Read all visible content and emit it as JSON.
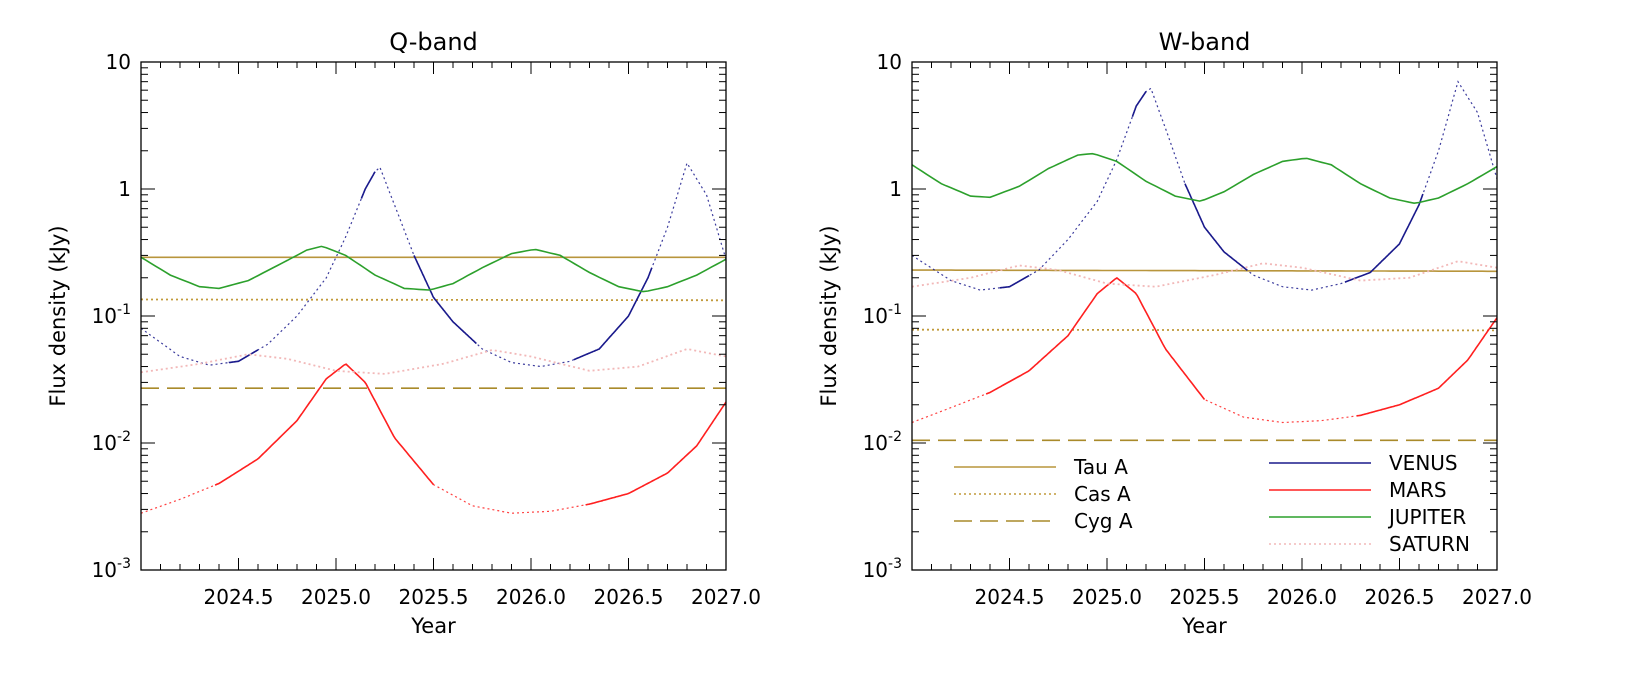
{
  "chart_data": [
    {
      "type": "line",
      "title": "Q-band",
      "xlabel": "Year",
      "ylabel": "Flux density (kJy)",
      "xlim": [
        2024.0,
        2027.0
      ],
      "ylim": [
        0.001,
        10
      ],
      "yscale": "log",
      "x_ticks": [
        "2024.5",
        "2025.0",
        "2025.5",
        "2026.0",
        "2026.5",
        "2027.0"
      ],
      "y_ticks": [
        {
          "base": "10",
          "exp": "-3"
        },
        {
          "base": "10",
          "exp": "-2"
        },
        {
          "base": "10",
          "exp": "-1"
        },
        {
          "base": "1",
          "exp": ""
        },
        {
          "base": "10",
          "exp": ""
        }
      ],
      "legend": "none",
      "series": [
        {
          "name": "Tau A",
          "color": "#b8953c",
          "dash": "solid",
          "x": [
            2024.0,
            2027.0
          ],
          "y": [
            0.29,
            0.29
          ]
        },
        {
          "name": "Cas A",
          "color": "#c19a3a",
          "dash": "dotted",
          "x": [
            2024.0,
            2027.0
          ],
          "y": [
            0.135,
            0.133
          ]
        },
        {
          "name": "Cyg A",
          "color": "#a98a2a",
          "dash": "dashed",
          "x": [
            2024.0,
            2027.0
          ],
          "y": [
            0.027,
            0.027
          ]
        },
        {
          "name": "VENUS",
          "color": "#1a1a8c",
          "x": [
            2024.0,
            2024.2,
            2024.35,
            2024.5,
            2024.65,
            2024.8,
            2024.95,
            2025.05,
            2025.15,
            2025.22,
            2025.3,
            2025.4,
            2025.5,
            2025.6,
            2025.75,
            2025.9,
            2026.05,
            2026.2,
            2026.35,
            2026.5,
            2026.6,
            2026.7,
            2026.8,
            2026.9,
            2027.0
          ],
          "y": [
            0.08,
            0.048,
            0.041,
            0.044,
            0.06,
            0.1,
            0.2,
            0.42,
            1.0,
            1.55,
            0.75,
            0.3,
            0.14,
            0.09,
            0.055,
            0.043,
            0.04,
            0.044,
            0.055,
            0.1,
            0.2,
            0.5,
            1.6,
            0.9,
            0.28
          ],
          "solid_x_ranges": [
            [
              2024.45,
              2024.6
            ],
            [
              2025.13,
              2025.2
            ],
            [
              2025.4,
              2025.72
            ],
            [
              2026.22,
              2026.62
            ]
          ]
        },
        {
          "name": "MARS",
          "color": "#ff2020",
          "x": [
            2024.0,
            2024.2,
            2024.4,
            2024.6,
            2024.8,
            2024.95,
            2025.05,
            2025.15,
            2025.3,
            2025.5,
            2025.7,
            2025.9,
            2026.1,
            2026.3,
            2026.5,
            2026.7,
            2026.85,
            2027.0
          ],
          "y": [
            0.0028,
            0.0036,
            0.0048,
            0.0075,
            0.015,
            0.032,
            0.042,
            0.03,
            0.011,
            0.0047,
            0.0032,
            0.0028,
            0.0029,
            0.0033,
            0.004,
            0.0058,
            0.0095,
            0.021
          ],
          "solid_x_ranges": [
            [
              2024.38,
              2025.5
            ],
            [
              2026.28,
              2027.0
            ]
          ]
        },
        {
          "name": "JUPITER",
          "color": "#2ca02c",
          "x": [
            2024.0,
            2024.15,
            2024.3,
            2024.4,
            2024.55,
            2024.7,
            2024.85,
            2024.93,
            2025.05,
            2025.2,
            2025.35,
            2025.48,
            2025.6,
            2025.75,
            2025.9,
            2026.02,
            2026.15,
            2026.3,
            2026.45,
            2026.58,
            2026.7,
            2026.85,
            2027.0
          ],
          "y": [
            0.29,
            0.21,
            0.17,
            0.165,
            0.19,
            0.25,
            0.33,
            0.355,
            0.3,
            0.21,
            0.165,
            0.16,
            0.18,
            0.24,
            0.31,
            0.335,
            0.3,
            0.22,
            0.17,
            0.155,
            0.17,
            0.21,
            0.28
          ]
        },
        {
          "name": "SATURN",
          "color": "#f2b8b8",
          "dash": "dotted",
          "x": [
            2024.0,
            2024.3,
            2024.55,
            2024.75,
            2025.0,
            2025.25,
            2025.55,
            2025.8,
            2026.0,
            2026.3,
            2026.55,
            2026.8,
            2027.0
          ],
          "y": [
            0.036,
            0.042,
            0.05,
            0.046,
            0.037,
            0.035,
            0.042,
            0.054,
            0.048,
            0.037,
            0.04,
            0.055,
            0.048
          ]
        }
      ]
    },
    {
      "type": "line",
      "title": "W-band",
      "xlabel": "Year",
      "ylabel": "Flux density (kJy)",
      "xlim": [
        2024.0,
        2027.0
      ],
      "ylim": [
        0.001,
        10
      ],
      "yscale": "log",
      "x_ticks": [
        "2024.5",
        "2025.0",
        "2025.5",
        "2026.0",
        "2026.5",
        "2027.0"
      ],
      "y_ticks": [
        {
          "base": "10",
          "exp": "-3"
        },
        {
          "base": "10",
          "exp": "-2"
        },
        {
          "base": "10",
          "exp": "-1"
        },
        {
          "base": "1",
          "exp": ""
        },
        {
          "base": "10",
          "exp": ""
        }
      ],
      "legend": "bottom",
      "series": [
        {
          "name": "Tau A",
          "color": "#b8953c",
          "dash": "solid",
          "x": [
            2024.0,
            2027.0
          ],
          "y": [
            0.23,
            0.225
          ]
        },
        {
          "name": "Cas A",
          "color": "#c19a3a",
          "dash": "dotted",
          "x": [
            2024.0,
            2027.0
          ],
          "y": [
            0.078,
            0.077
          ]
        },
        {
          "name": "Cyg A",
          "color": "#a98a2a",
          "dash": "dashed",
          "x": [
            2024.0,
            2027.0
          ],
          "y": [
            0.0105,
            0.0105
          ]
        },
        {
          "name": "VENUS",
          "color": "#1a1a8c",
          "x": [
            2024.0,
            2024.2,
            2024.35,
            2024.5,
            2024.65,
            2024.8,
            2024.95,
            2025.05,
            2025.15,
            2025.22,
            2025.3,
            2025.4,
            2025.5,
            2025.6,
            2025.75,
            2025.9,
            2026.05,
            2026.2,
            2026.35,
            2026.5,
            2026.6,
            2026.7,
            2026.8,
            2026.9,
            2027.0
          ],
          "y": [
            0.3,
            0.19,
            0.16,
            0.17,
            0.23,
            0.4,
            0.8,
            1.7,
            4.5,
            6.5,
            3.0,
            1.1,
            0.5,
            0.32,
            0.21,
            0.17,
            0.16,
            0.18,
            0.22,
            0.37,
            0.75,
            2.0,
            7.0,
            4.0,
            1.2
          ],
          "solid_x_ranges": [
            [
              2024.45,
              2024.6
            ],
            [
              2025.13,
              2025.2
            ],
            [
              2025.4,
              2025.72
            ],
            [
              2026.22,
              2026.62
            ]
          ]
        },
        {
          "name": "MARS",
          "color": "#ff2020",
          "x": [
            2024.0,
            2024.2,
            2024.4,
            2024.6,
            2024.8,
            2024.95,
            2025.05,
            2025.15,
            2025.3,
            2025.5,
            2025.7,
            2025.9,
            2026.1,
            2026.3,
            2026.5,
            2026.7,
            2026.85,
            2027.0
          ],
          "y": [
            0.0145,
            0.019,
            0.025,
            0.037,
            0.07,
            0.15,
            0.2,
            0.15,
            0.055,
            0.022,
            0.016,
            0.0145,
            0.015,
            0.0165,
            0.02,
            0.027,
            0.045,
            0.097
          ],
          "solid_x_ranges": [
            [
              2024.38,
              2025.5
            ],
            [
              2026.28,
              2027.0
            ]
          ]
        },
        {
          "name": "JUPITER",
          "color": "#2ca02c",
          "x": [
            2024.0,
            2024.15,
            2024.3,
            2024.4,
            2024.55,
            2024.7,
            2024.85,
            2024.93,
            2025.05,
            2025.2,
            2025.35,
            2025.48,
            2025.6,
            2025.75,
            2025.9,
            2026.02,
            2026.15,
            2026.3,
            2026.45,
            2026.58,
            2026.7,
            2026.85,
            2027.0
          ],
          "y": [
            1.55,
            1.1,
            0.88,
            0.86,
            1.05,
            1.45,
            1.85,
            1.9,
            1.65,
            1.15,
            0.88,
            0.8,
            0.95,
            1.3,
            1.65,
            1.75,
            1.55,
            1.1,
            0.85,
            0.77,
            0.85,
            1.1,
            1.5
          ]
        },
        {
          "name": "SATURN",
          "color": "#f2b8b8",
          "dash": "dotted",
          "x": [
            2024.0,
            2024.3,
            2024.55,
            2024.75,
            2025.0,
            2025.25,
            2025.55,
            2025.8,
            2026.0,
            2026.3,
            2026.55,
            2026.8,
            2027.0
          ],
          "y": [
            0.17,
            0.2,
            0.25,
            0.23,
            0.18,
            0.17,
            0.21,
            0.26,
            0.24,
            0.19,
            0.2,
            0.27,
            0.24
          ]
        }
      ]
    }
  ]
}
